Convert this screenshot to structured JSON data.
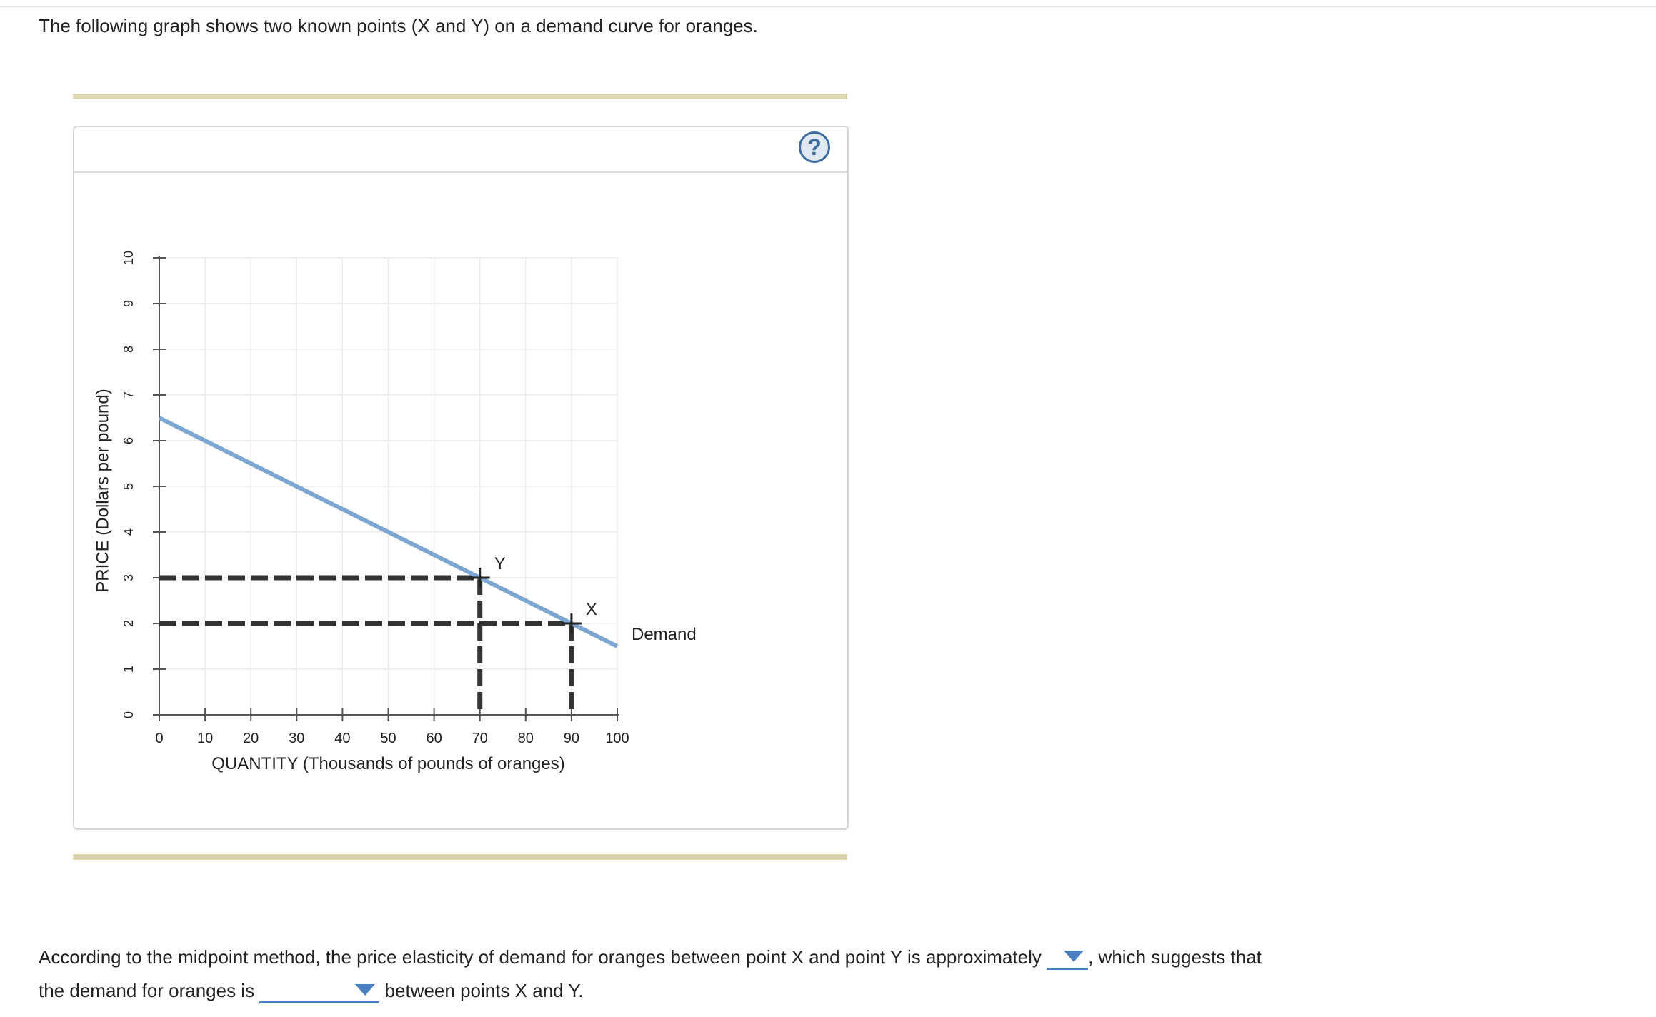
{
  "intro_text": "The following graph shows two known points (X and Y) on a demand curve for oranges.",
  "help_label": "?",
  "chart_data": {
    "type": "line",
    "xlabel": "QUANTITY (Thousands of pounds of oranges)",
    "ylabel": "PRICE (Dollars per pound)",
    "xlim": [
      0,
      100
    ],
    "ylim": [
      0,
      10
    ],
    "xticks": [
      "0",
      "10",
      "20",
      "30",
      "40",
      "50",
      "60",
      "70",
      "80",
      "90",
      "100"
    ],
    "yticks": [
      "0",
      "1",
      "2",
      "3",
      "4",
      "5",
      "6",
      "7",
      "8",
      "9",
      "10"
    ],
    "grid": true,
    "series": [
      {
        "name": "Demand",
        "color": "#7ea6d2",
        "points": [
          [
            0,
            6.5
          ],
          [
            100,
            1.5
          ]
        ]
      }
    ],
    "points": [
      {
        "label": "Y",
        "x": 70,
        "y": 3
      },
      {
        "label": "X",
        "x": 90,
        "y": 2
      }
    ]
  },
  "question": {
    "part1": "According to the midpoint method, the price elasticity of demand for oranges between point X and point Y is approximately",
    "part2": ", which suggests that",
    "part3": "the demand for oranges is",
    "part4": "between points X and Y."
  }
}
